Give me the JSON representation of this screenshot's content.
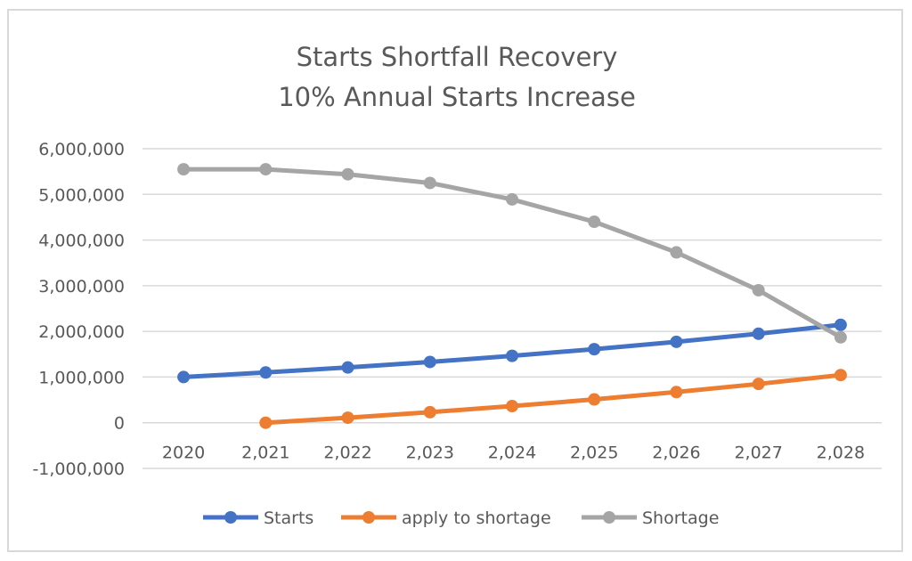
{
  "chart_data": {
    "type": "line",
    "title": "Starts Shortfall Recovery",
    "subtitle": "10% Annual Starts Increase",
    "categories": [
      "2020",
      "2,021",
      "2,022",
      "2,023",
      "2,024",
      "2,025",
      "2,026",
      "2,027",
      "2,028"
    ],
    "ylim": [
      -1000000,
      6000000
    ],
    "yticks": [
      6000000,
      5000000,
      4000000,
      3000000,
      2000000,
      1000000,
      0,
      -1000000
    ],
    "ytick_labels": [
      "6,000,000",
      "5,000,000",
      "4,000,000",
      "3,000,000",
      "2,000,000",
      "1,000,000",
      "0",
      "-1,000,000"
    ],
    "grid": true,
    "legend_position": "bottom",
    "series": [
      {
        "name": "Starts",
        "color": "#4472c4",
        "values": [
          1000000,
          1100000,
          1210000,
          1331000,
          1464100,
          1610510,
          1771561,
          1948717,
          2143589
        ]
      },
      {
        "name": "apply to shortage",
        "color": "#ed7d31",
        "values": [
          null,
          0,
          110000,
          231000,
          364100,
          510510,
          671561,
          848717,
          1043589
        ]
      },
      {
        "name": "Shortage",
        "color": "#a5a5a5",
        "values": [
          5550000,
          5550000,
          5440000,
          5250000,
          4890000,
          4400000,
          3730000,
          2900000,
          1870000
        ]
      }
    ]
  }
}
